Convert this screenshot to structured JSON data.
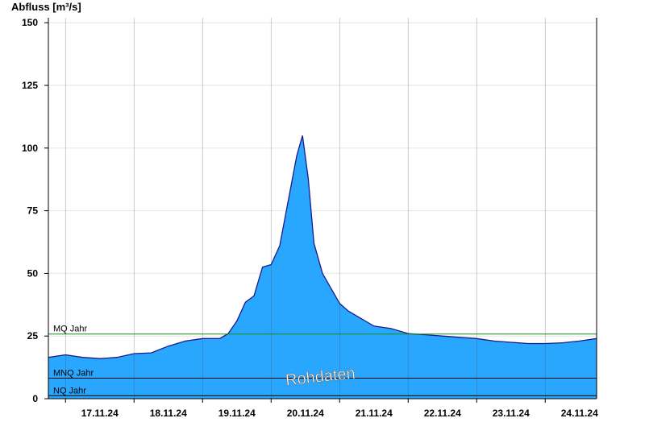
{
  "chart_data": {
    "type": "area",
    "ylabel": "Abfluss [m³/s]",
    "ylim": [
      0,
      152
    ],
    "yticks": [
      0,
      25,
      50,
      75,
      100,
      125,
      150
    ],
    "xlim": [
      "2024-11-16T18:00",
      "2024-11-24T18:00"
    ],
    "xtick_labels": [
      "17.11.24",
      "18.11.24",
      "19.11.24",
      "20.11.24",
      "21.11.24",
      "22.11.24",
      "23.11.24",
      "24.11.24"
    ],
    "grid": true,
    "fill_color": "#29a7ff",
    "line_color": "#1a1a8c",
    "reference_lines": [
      {
        "label": "MQ Jahr",
        "value": 25.8,
        "color": "#1a8a1a"
      },
      {
        "label": "MNQ Jahr",
        "value": 8.2,
        "color": "#000000"
      },
      {
        "label": "NQ Jahr",
        "value": 1.2,
        "color": "#000000"
      }
    ],
    "watermark": "Rohdaten",
    "series": [
      {
        "x": [
          "2024-11-16T18:00",
          "2024-11-17T00:00",
          "2024-11-17T06:00",
          "2024-11-17T12:00",
          "2024-11-17T18:00",
          "2024-11-18T00:00",
          "2024-11-18T06:00",
          "2024-11-18T12:00",
          "2024-11-18T18:00",
          "2024-11-19T00:00",
          "2024-11-19T06:00",
          "2024-11-19T09:00",
          "2024-11-19T12:00",
          "2024-11-19T15:00",
          "2024-11-19T18:00",
          "2024-11-19T21:00",
          "2024-11-20T00:00",
          "2024-11-20T03:00",
          "2024-11-20T06:00",
          "2024-11-20T09:00",
          "2024-11-20T11:00",
          "2024-11-20T13:00",
          "2024-11-20T15:00",
          "2024-11-20T18:00",
          "2024-11-20T21:00",
          "2024-11-21T00:00",
          "2024-11-21T03:00",
          "2024-11-21T06:00",
          "2024-11-21T09:00",
          "2024-11-21T12:00",
          "2024-11-21T18:00",
          "2024-11-22T00:00",
          "2024-11-22T06:00",
          "2024-11-22T12:00",
          "2024-11-22T18:00",
          "2024-11-23T00:00",
          "2024-11-23T06:00",
          "2024-11-23T12:00",
          "2024-11-23T18:00",
          "2024-11-24T00:00",
          "2024-11-24T06:00",
          "2024-11-24T12:00",
          "2024-11-24T18:00"
        ],
        "y": [
          16.5,
          17.5,
          16.5,
          16,
          16.5,
          18,
          18.3,
          21,
          23,
          24,
          24,
          26,
          31,
          38.5,
          41,
          52.5,
          53.5,
          61,
          79,
          97,
          105,
          88,
          62,
          50,
          44,
          38,
          35,
          33,
          31,
          29,
          28,
          26,
          25.5,
          25,
          24.5,
          24,
          23,
          22.5,
          22,
          22,
          22.3,
          23,
          24
        ]
      }
    ]
  }
}
